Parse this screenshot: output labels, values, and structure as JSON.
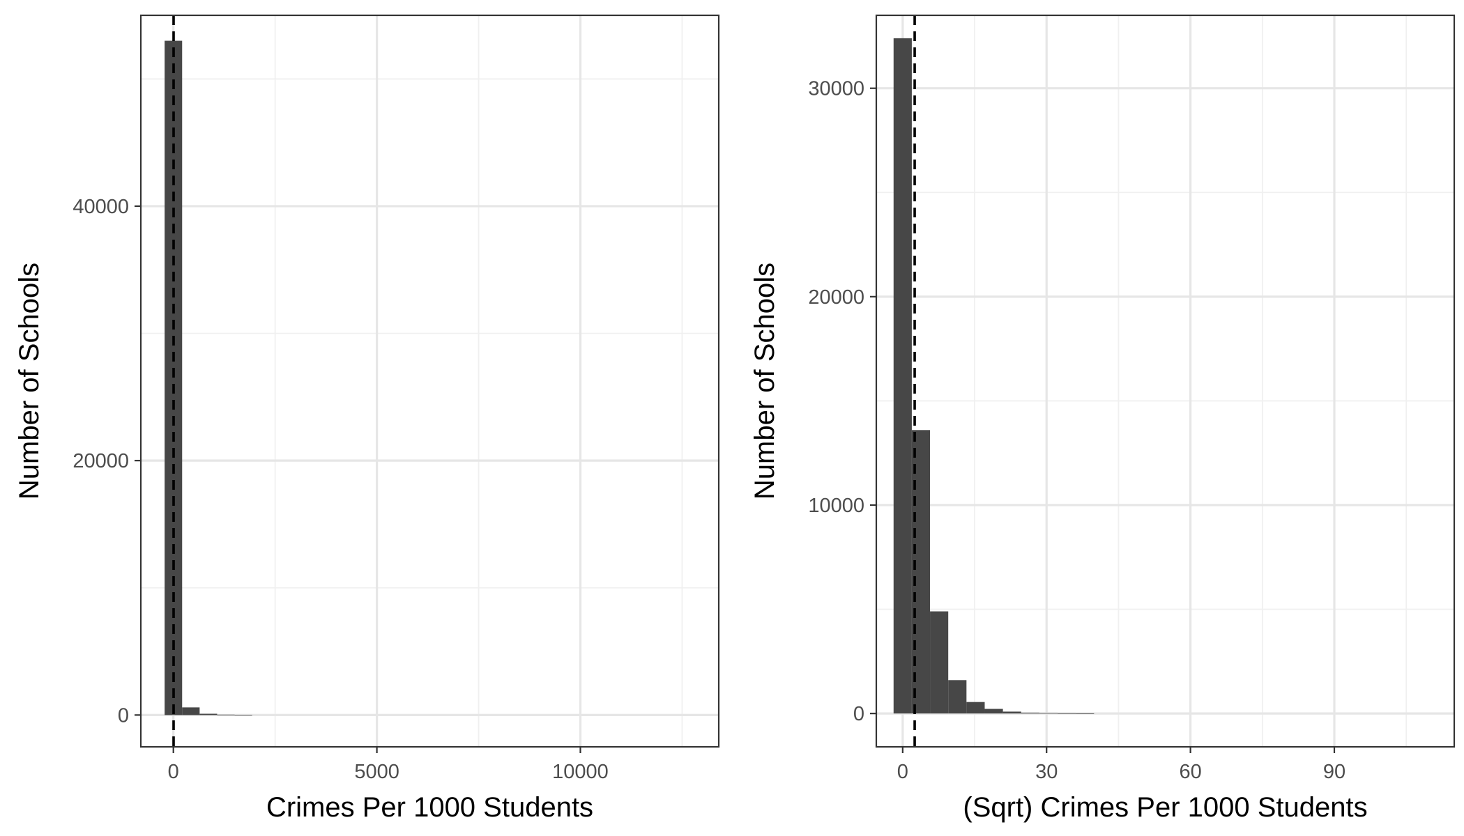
{
  "colors": {
    "bar": "#474747",
    "grid_major": "#e6e6e6",
    "grid_minor": "#f0f0f0",
    "panel_border": "#333333",
    "tick_text": "#4d4d4d",
    "reference_line": "#000000"
  },
  "chart_data": [
    {
      "type": "bar",
      "subtype": "histogram",
      "xlabel": "Crimes Per 1000 Students",
      "ylabel": "Number of Schools",
      "xlim": [
        -800,
        13400
      ],
      "ylim": [
        -2500,
        55000
      ],
      "xticks": [
        0,
        5000,
        10000
      ],
      "yticks": [
        0,
        20000,
        40000
      ],
      "x_minor_grid": [
        2500,
        7500,
        12500
      ],
      "y_minor_grid": [
        10000,
        30000,
        50000
      ],
      "bin_width": 430,
      "bins": [
        {
          "x": 0,
          "count": 53000
        },
        {
          "x": 430,
          "count": 600
        },
        {
          "x": 860,
          "count": 100
        },
        {
          "x": 1290,
          "count": 30
        },
        {
          "x": 1720,
          "count": 10
        }
      ],
      "vline": {
        "x": 5,
        "style": "dashed"
      },
      "grid": true
    },
    {
      "type": "bar",
      "subtype": "histogram",
      "xlabel": "(Sqrt) Crimes Per 1000 Students",
      "ylabel": "Number of Schools",
      "xlim": [
        -5.5,
        115
      ],
      "ylim": [
        -1600,
        33500
      ],
      "xticks": [
        0,
        30,
        60,
        90
      ],
      "yticks": [
        0,
        10000,
        20000,
        30000
      ],
      "x_minor_grid": [
        15,
        45,
        75,
        105
      ],
      "y_minor_grid": [
        5000,
        15000,
        25000
      ],
      "bin_width": 3.8,
      "bins": [
        {
          "x": 0,
          "count": 32400
        },
        {
          "x": 3.8,
          "count": 13600
        },
        {
          "x": 7.6,
          "count": 4900
        },
        {
          "x": 11.4,
          "count": 1600
        },
        {
          "x": 15.2,
          "count": 550
        },
        {
          "x": 19.0,
          "count": 220
        },
        {
          "x": 22.8,
          "count": 90
        },
        {
          "x": 26.6,
          "count": 40
        },
        {
          "x": 30.4,
          "count": 20
        },
        {
          "x": 34.2,
          "count": 10
        },
        {
          "x": 38.0,
          "count": 5
        }
      ],
      "vline": {
        "x": 2.5,
        "style": "dashed"
      },
      "grid": true
    }
  ]
}
